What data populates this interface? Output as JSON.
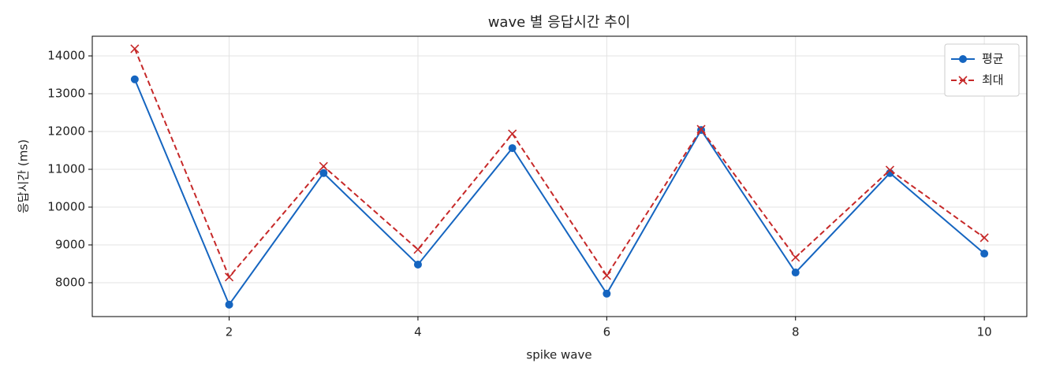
{
  "chart_data": {
    "type": "line",
    "title": "wave 별 응답시간 추이",
    "x_label": "spike wave",
    "y_label": "응답시간 (ms)",
    "x": [
      1,
      2,
      3,
      4,
      5,
      6,
      7,
      8,
      9,
      10
    ],
    "series": [
      {
        "name": "평균",
        "color": "#1565c0",
        "marker": "circle",
        "linestyle": "solid",
        "values": [
          13380,
          7420,
          10900,
          8480,
          11560,
          7710,
          12040,
          8270,
          10900,
          8770
        ]
      },
      {
        "name": "최대",
        "color": "#c62828",
        "marker": "x",
        "linestyle": "dashed",
        "values": [
          14190,
          8150,
          11080,
          8880,
          11940,
          8190,
          12060,
          8670,
          10980,
          9190
        ]
      }
    ],
    "xlim": [
      0.55,
      10.45
    ],
    "xticks": [
      2,
      4,
      6,
      8,
      10
    ],
    "ylim": [
      7104,
      14521
    ],
    "yticks": [
      8000,
      9000,
      10000,
      11000,
      12000,
      13000,
      14000
    ],
    "grid": true,
    "legend": "upper right"
  }
}
